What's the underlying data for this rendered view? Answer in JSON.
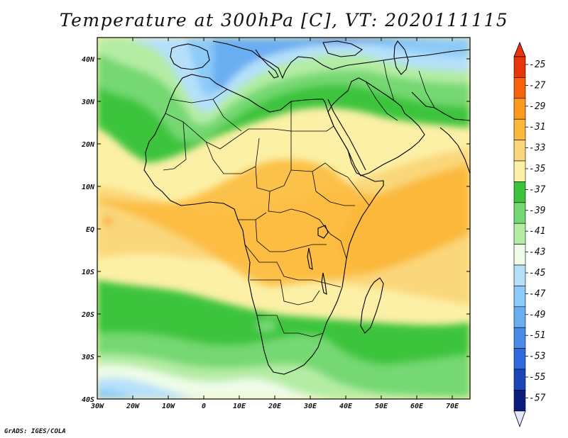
{
  "title": "Temperature at 300hPa [C], VT: 2020111115",
  "credit": "GrADS: IGES/COLA",
  "map": {
    "projection": "latlon",
    "lon_range": [
      -30,
      75
    ],
    "lat_range": [
      -40,
      45
    ],
    "lon_ticks": [
      {
        "value": -30,
        "label": "30W"
      },
      {
        "value": -20,
        "label": "20W"
      },
      {
        "value": -10,
        "label": "10W"
      },
      {
        "value": 0,
        "label": "0"
      },
      {
        "value": 10,
        "label": "10E"
      },
      {
        "value": 20,
        "label": "20E"
      },
      {
        "value": 30,
        "label": "30E"
      },
      {
        "value": 40,
        "label": "40E"
      },
      {
        "value": 50,
        "label": "50E"
      },
      {
        "value": 60,
        "label": "60E"
      },
      {
        "value": 70,
        "label": "70E"
      }
    ],
    "lat_ticks": [
      {
        "value": 40,
        "label": "40N"
      },
      {
        "value": 30,
        "label": "30N"
      },
      {
        "value": 20,
        "label": "20N"
      },
      {
        "value": 10,
        "label": "10N"
      },
      {
        "value": 0,
        "label": "EQ"
      },
      {
        "value": -10,
        "label": "10S"
      },
      {
        "value": -20,
        "label": "20S"
      },
      {
        "value": -30,
        "label": "30S"
      },
      {
        "value": -40,
        "label": "40S"
      }
    ]
  },
  "colorbar": {
    "labels": [
      "-25",
      "-27",
      "-29",
      "-31",
      "-33",
      "-35",
      "-37",
      "-39",
      "-41",
      "-43",
      "-45",
      "-47",
      "-49",
      "-51",
      "-53",
      "-55",
      "-57"
    ],
    "colors": [
      "#e8340a",
      "#f7630c",
      "#fb9a1c",
      "#fbb83a",
      "#fad77a",
      "#fcf0a6",
      "#3cc43c",
      "#74d872",
      "#b4eca4",
      "#eefce8",
      "#b6e0fa",
      "#8ccbf8",
      "#6aaef2",
      "#4a8ae8",
      "#2f6adc",
      "#1a46b8",
      "#0a1c7c"
    ],
    "top_color": "#e8340a",
    "bottom_color": "#e4e4fa"
  }
}
